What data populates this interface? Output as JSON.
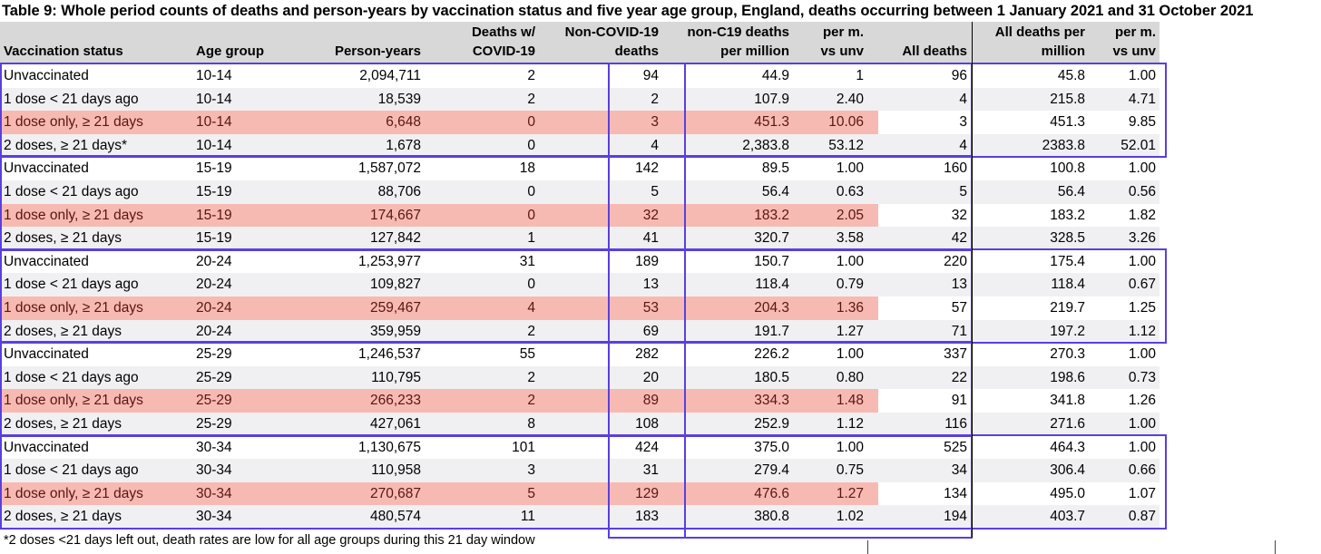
{
  "title": "Table 9: Whole period counts of deaths and person-years by vaccination status and five year age group, England, deaths occurring between 1 January 2021 and 31 October 2021",
  "columns": [
    {
      "key": "status",
      "line1": "",
      "line2": "Vaccination status"
    },
    {
      "key": "age",
      "line1": "",
      "line2": "Age group"
    },
    {
      "key": "py",
      "line1": "",
      "line2": "Person-years"
    },
    {
      "key": "dc",
      "line1": "Deaths w/",
      "line2": "COVID-19"
    },
    {
      "key": "nc",
      "line1": "Non-COVID-19",
      "line2": "deaths"
    },
    {
      "key": "ncpm",
      "line1": "non-C19 deaths",
      "line2": "per million"
    },
    {
      "key": "ncvu",
      "line1": "per m.",
      "line2": "vs unv"
    },
    {
      "key": "ad",
      "line1": "",
      "line2": "All deaths"
    },
    {
      "key": "adpm",
      "line1": "All deaths per",
      "line2": "million"
    },
    {
      "key": "advu",
      "line1": "per m.",
      "line2": "vs unv"
    }
  ],
  "rows": [
    {
      "status": "Unvaccinated",
      "age": "10-14",
      "py": "2,094,711",
      "dc": "2",
      "nc": "94",
      "ncpm": "44.9",
      "ncvu": "1",
      "ad": "96",
      "adpm": "45.8",
      "advu": "1.00",
      "highlight": false
    },
    {
      "status": "1 dose < 21 days ago",
      "age": "10-14",
      "py": "18,539",
      "dc": "2",
      "nc": "2",
      "ncpm": "107.9",
      "ncvu": "2.40",
      "ad": "4",
      "adpm": "215.8",
      "advu": "4.71",
      "highlight": false
    },
    {
      "status": "1 dose only, ≥ 21 days",
      "age": "10-14",
      "py": "6,648",
      "dc": "0",
      "nc": "3",
      "ncpm": "451.3",
      "ncvu": "10.06",
      "ad": "3",
      "adpm": "451.3",
      "advu": "9.85",
      "highlight": true
    },
    {
      "status": "2 doses, ≥ 21 days*",
      "age": "10-14",
      "py": "1,678",
      "dc": "0",
      "nc": "4",
      "ncpm": "2,383.8",
      "ncvu": "53.12",
      "ad": "4",
      "adpm": "2383.8",
      "advu": "52.01",
      "highlight": false
    },
    {
      "status": "Unvaccinated",
      "age": "15-19",
      "py": "1,587,072",
      "dc": "18",
      "nc": "142",
      "ncpm": "89.5",
      "ncvu": "1.00",
      "ad": "160",
      "adpm": "100.8",
      "advu": "1.00",
      "highlight": false
    },
    {
      "status": "1 dose < 21 days ago",
      "age": "15-19",
      "py": "88,706",
      "dc": "0",
      "nc": "5",
      "ncpm": "56.4",
      "ncvu": "0.63",
      "ad": "5",
      "adpm": "56.4",
      "advu": "0.56",
      "highlight": false
    },
    {
      "status": "1 dose only, ≥ 21 days",
      "age": "15-19",
      "py": "174,667",
      "dc": "0",
      "nc": "32",
      "ncpm": "183.2",
      "ncvu": "2.05",
      "ad": "32",
      "adpm": "183.2",
      "advu": "1.82",
      "highlight": true
    },
    {
      "status": "2 doses, ≥ 21 days",
      "age": "15-19",
      "py": "127,842",
      "dc": "1",
      "nc": "41",
      "ncpm": "320.7",
      "ncvu": "3.58",
      "ad": "42",
      "adpm": "328.5",
      "advu": "3.26",
      "highlight": false
    },
    {
      "status": "Unvaccinated",
      "age": "20-24",
      "py": "1,253,977",
      "dc": "31",
      "nc": "189",
      "ncpm": "150.7",
      "ncvu": "1.00",
      "ad": "220",
      "adpm": "175.4",
      "advu": "1.00",
      "highlight": false
    },
    {
      "status": "1 dose < 21 days ago",
      "age": "20-24",
      "py": "109,827",
      "dc": "0",
      "nc": "13",
      "ncpm": "118.4",
      "ncvu": "0.79",
      "ad": "13",
      "adpm": "118.4",
      "advu": "0.67",
      "highlight": false
    },
    {
      "status": "1 dose only, ≥ 21 days",
      "age": "20-24",
      "py": "259,467",
      "dc": "4",
      "nc": "53",
      "ncpm": "204.3",
      "ncvu": "1.36",
      "ad": "57",
      "adpm": "219.7",
      "advu": "1.25",
      "highlight": true
    },
    {
      "status": "2 doses, ≥ 21 days",
      "age": "20-24",
      "py": "359,959",
      "dc": "2",
      "nc": "69",
      "ncpm": "191.7",
      "ncvu": "1.27",
      "ad": "71",
      "adpm": "197.2",
      "advu": "1.12",
      "highlight": false
    },
    {
      "status": "Unvaccinated",
      "age": "25-29",
      "py": "1,246,537",
      "dc": "55",
      "nc": "282",
      "ncpm": "226.2",
      "ncvu": "1.00",
      "ad": "337",
      "adpm": "270.3",
      "advu": "1.00",
      "highlight": false
    },
    {
      "status": "1 dose < 21 days ago",
      "age": "25-29",
      "py": "110,795",
      "dc": "2",
      "nc": "20",
      "ncpm": "180.5",
      "ncvu": "0.80",
      "ad": "22",
      "adpm": "198.6",
      "advu": "0.73",
      "highlight": false
    },
    {
      "status": "1 dose only, ≥ 21 days",
      "age": "25-29",
      "py": "266,233",
      "dc": "2",
      "nc": "89",
      "ncpm": "334.3",
      "ncvu": "1.48",
      "ad": "91",
      "adpm": "341.8",
      "advu": "1.26",
      "highlight": true
    },
    {
      "status": "2 doses, ≥ 21 days",
      "age": "25-29",
      "py": "427,061",
      "dc": "8",
      "nc": "108",
      "ncpm": "252.9",
      "ncvu": "1.12",
      "ad": "116",
      "adpm": "271.6",
      "advu": "1.00",
      "highlight": false
    },
    {
      "status": "Unvaccinated",
      "age": "30-34",
      "py": "1,130,675",
      "dc": "101",
      "nc": "424",
      "ncpm": "375.0",
      "ncvu": "1.00",
      "ad": "525",
      "adpm": "464.3",
      "advu": "1.00",
      "highlight": false
    },
    {
      "status": "1 dose < 21 days ago",
      "age": "30-34",
      "py": "110,958",
      "dc": "3",
      "nc": "31",
      "ncpm": "279.4",
      "ncvu": "0.75",
      "ad": "34",
      "adpm": "306.4",
      "advu": "0.66",
      "highlight": false
    },
    {
      "status": "1 dose only, ≥ 21 days",
      "age": "30-34",
      "py": "270,687",
      "dc": "5",
      "nc": "129",
      "ncpm": "476.6",
      "ncvu": "1.27",
      "ad": "134",
      "adpm": "495.0",
      "advu": "1.07",
      "highlight": true
    },
    {
      "status": "2 doses, ≥ 21 days",
      "age": "30-34",
      "py": "480,574",
      "dc": "11",
      "nc": "183",
      "ncpm": "380.8",
      "ncvu": "1.02",
      "ad": "194",
      "adpm": "403.7",
      "advu": "0.87",
      "highlight": false
    }
  ],
  "footnote": "*2 doses <21 days left out, death rates are low for all age groups during this 21 day window",
  "colors": {
    "header_bg": "#d8d8d8",
    "alt_row_bg": "#f0f0f3",
    "highlight_bg": "#f7bab2",
    "box_border": "#5a3fe0"
  }
}
